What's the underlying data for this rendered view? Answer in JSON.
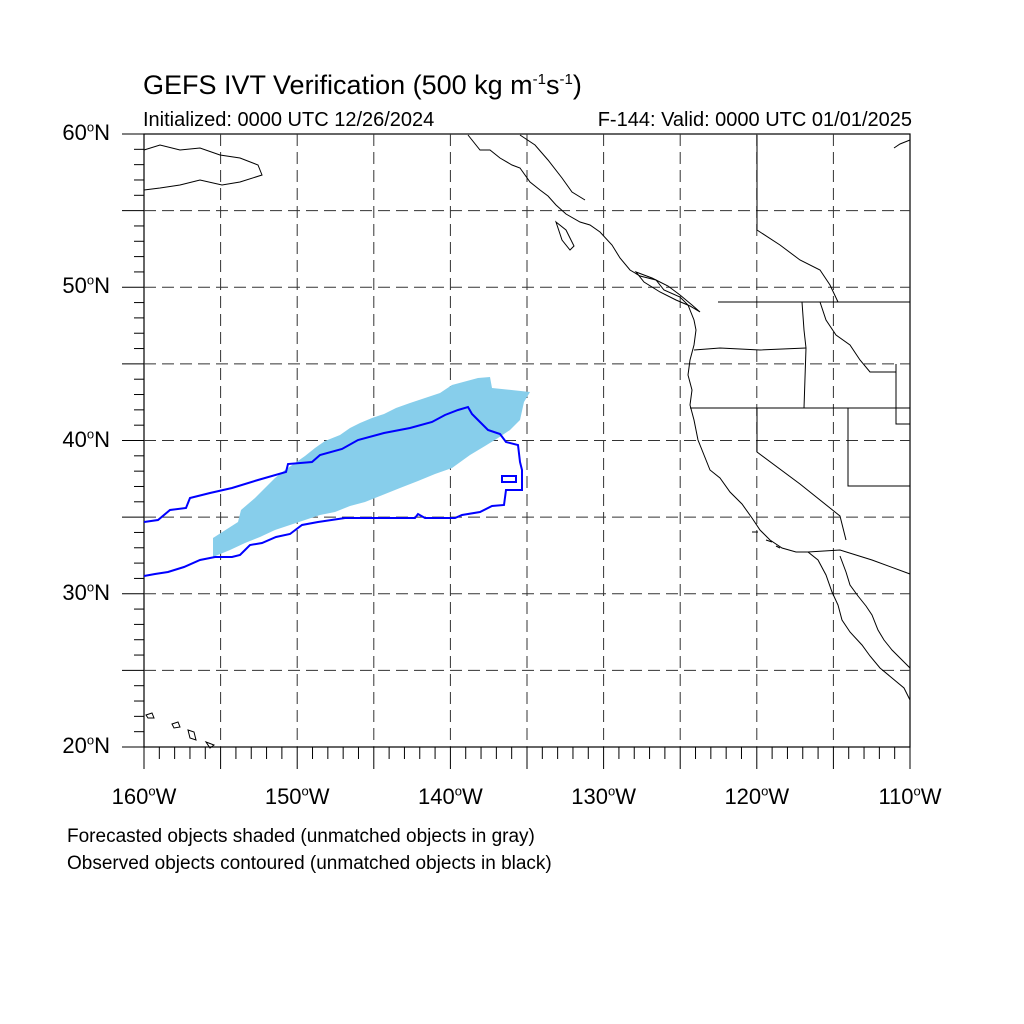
{
  "title": {
    "text": "GEFS IVT Verification (500 kg m",
    "exp1": "-1",
    "mid": "s",
    "exp2": "-1",
    "end": ")"
  },
  "initialized": "Initialized: 0000 UTC 12/26/2024",
  "valid": "F-144: Valid: 0000 UTC 01/01/2025",
  "map": {
    "lon_range": [
      -160,
      -110
    ],
    "lat_range": [
      20,
      60
    ],
    "lat_labels": [
      {
        "text": "60",
        "suffix": "N",
        "lat": 60
      },
      {
        "text": "50",
        "suffix": "N",
        "lat": 50
      },
      {
        "text": "40",
        "suffix": "N",
        "lat": 40
      },
      {
        "text": "30",
        "suffix": "N",
        "lat": 30
      },
      {
        "text": "20",
        "suffix": "N",
        "lat": 20
      }
    ],
    "lon_labels": [
      {
        "text": "160",
        "suffix": "W",
        "lon": -160
      },
      {
        "text": "150",
        "suffix": "W",
        "lon": -150
      },
      {
        "text": "140",
        "suffix": "W",
        "lon": -140
      },
      {
        "text": "130",
        "suffix": "W",
        "lon": -130
      },
      {
        "text": "120",
        "suffix": "W",
        "lon": -120
      },
      {
        "text": "110",
        "suffix": "W",
        "lon": -110
      }
    ],
    "colors": {
      "forecast_fill": "#87ceeb",
      "observed_contour": "#0000ff",
      "coastline": "#000000",
      "grid": "#333333"
    }
  },
  "notes": {
    "line1": "Forecasted objects shaded (unmatched objects in gray)",
    "line2": "Observed objects contoured (unmatched objects in black)"
  }
}
